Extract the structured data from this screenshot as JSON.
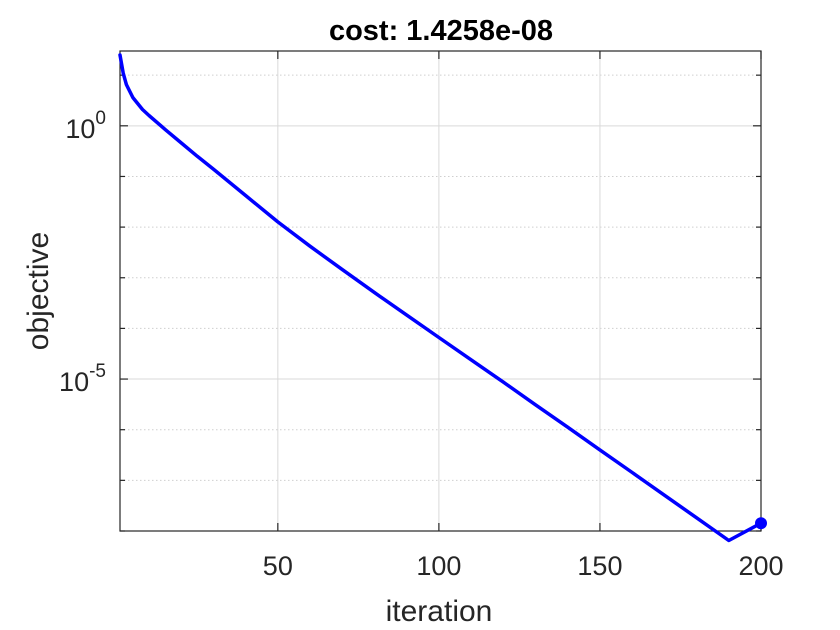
{
  "chart_data": {
    "type": "line",
    "title": "cost: 1.4258e-08",
    "xlabel": "iteration",
    "ylabel": "objective",
    "xlim": [
      1,
      200
    ],
    "ylim": [
      1e-08,
      30
    ],
    "yscale": "log",
    "grid": true,
    "x_ticks": [
      50,
      100,
      150,
      200
    ],
    "x_tick_labels": [
      "50",
      "100",
      "150",
      "200"
    ],
    "y_ticks": [
      1,
      1e-05
    ],
    "y_tick_labels": [
      {
        "base": "10",
        "exp": "0"
      },
      {
        "base": "10",
        "exp": "-5"
      }
    ],
    "series": [
      {
        "color": "#0000ff",
        "x": [
          1,
          2,
          3,
          5,
          8,
          10,
          15,
          20,
          25,
          30,
          40,
          50,
          60,
          70,
          80,
          90,
          100,
          110,
          120,
          130,
          140,
          150,
          160,
          170,
          180,
          190,
          200
        ],
        "y": [
          25,
          11,
          6.5,
          3.6,
          2.1,
          1.6,
          0.85,
          0.46,
          0.25,
          0.14,
          0.042,
          0.0127,
          0.0042,
          0.00145,
          0.00051,
          0.000183,
          6.6e-05,
          2.4e-05,
          8.7e-06,
          3.1e-06,
          1.12e-06,
          4e-07,
          1.43e-07,
          5.1e-08,
          1.82e-08,
          6.5e-09,
          1.4258e-08
        ]
      }
    ],
    "end_marker": {
      "x": 200,
      "y": 1.4258e-08,
      "color": "#0000ff"
    }
  }
}
